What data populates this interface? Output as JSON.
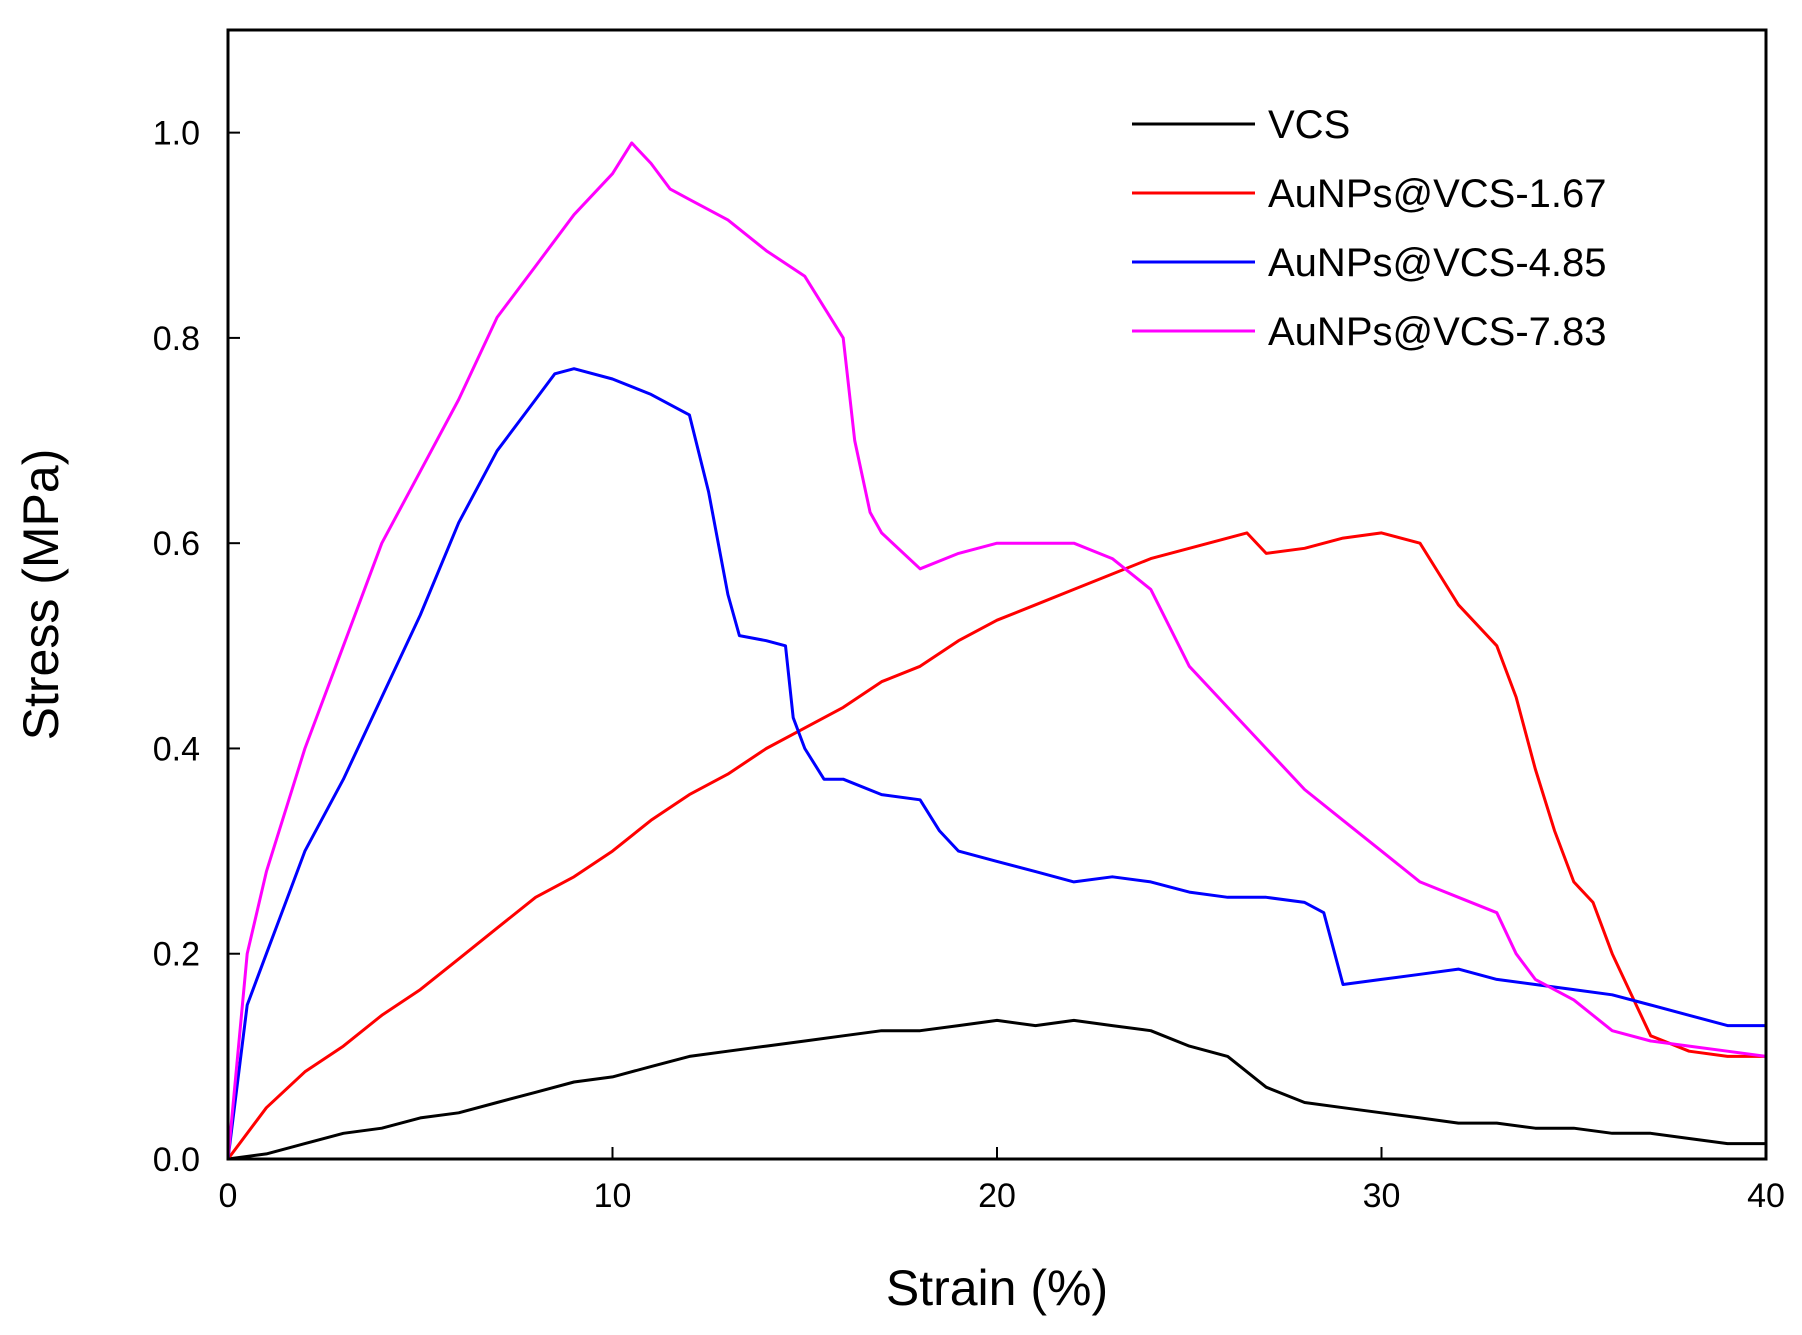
{
  "chart_data": {
    "type": "line",
    "title": "",
    "xlabel": "Strain (%)",
    "ylabel": "Stress (MPa)",
    "xlim": [
      0,
      40
    ],
    "ylim": [
      0,
      1.1
    ],
    "xticks": [
      0,
      10,
      20,
      30,
      40
    ],
    "xtick_labels": [
      "0",
      "10",
      "20",
      "30",
      "40"
    ],
    "yticks": [
      0,
      0.2,
      0.4,
      0.6,
      0.8,
      1.0
    ],
    "ytick_labels": [
      "0.0",
      "0.2",
      "0.4",
      "0.6",
      "0.8",
      "1.0"
    ],
    "grid": false,
    "legend_position": "top-right",
    "series": [
      {
        "name": "VCS",
        "color": "#000000",
        "points": [
          [
            0,
            0
          ],
          [
            1,
            0.005
          ],
          [
            2,
            0.015
          ],
          [
            3,
            0.025
          ],
          [
            4,
            0.03
          ],
          [
            5,
            0.04
          ],
          [
            6,
            0.045
          ],
          [
            7,
            0.055
          ],
          [
            8,
            0.065
          ],
          [
            9,
            0.075
          ],
          [
            10,
            0.08
          ],
          [
            11,
            0.09
          ],
          [
            12,
            0.1
          ],
          [
            13,
            0.105
          ],
          [
            14,
            0.11
          ],
          [
            15,
            0.115
          ],
          [
            16,
            0.12
          ],
          [
            17,
            0.125
          ],
          [
            18,
            0.125
          ],
          [
            19,
            0.13
          ],
          [
            20,
            0.135
          ],
          [
            21,
            0.13
          ],
          [
            22,
            0.135
          ],
          [
            23,
            0.13
          ],
          [
            24,
            0.125
          ],
          [
            25,
            0.11
          ],
          [
            26,
            0.1
          ],
          [
            27,
            0.07
          ],
          [
            28,
            0.055
          ],
          [
            29,
            0.05
          ],
          [
            30,
            0.045
          ],
          [
            31,
            0.04
          ],
          [
            32,
            0.035
          ],
          [
            33,
            0.035
          ],
          [
            34,
            0.03
          ],
          [
            35,
            0.03
          ],
          [
            36,
            0.025
          ],
          [
            37,
            0.025
          ],
          [
            38,
            0.02
          ],
          [
            39,
            0.015
          ],
          [
            40,
            0.015
          ]
        ]
      },
      {
        "name": "AuNPs@VCS-1.67",
        "color": "#ff0000",
        "points": [
          [
            0,
            0
          ],
          [
            1,
            0.05
          ],
          [
            2,
            0.085
          ],
          [
            3,
            0.11
          ],
          [
            4,
            0.14
          ],
          [
            5,
            0.165
          ],
          [
            6,
            0.195
          ],
          [
            7,
            0.225
          ],
          [
            8,
            0.255
          ],
          [
            9,
            0.275
          ],
          [
            10,
            0.3
          ],
          [
            11,
            0.33
          ],
          [
            12,
            0.355
          ],
          [
            13,
            0.375
          ],
          [
            14,
            0.4
          ],
          [
            15,
            0.42
          ],
          [
            16,
            0.44
          ],
          [
            17,
            0.465
          ],
          [
            18,
            0.48
          ],
          [
            19,
            0.505
          ],
          [
            20,
            0.525
          ],
          [
            21,
            0.54
          ],
          [
            22,
            0.555
          ],
          [
            23,
            0.57
          ],
          [
            24,
            0.585
          ],
          [
            25,
            0.595
          ],
          [
            26,
            0.605
          ],
          [
            26.5,
            0.61
          ],
          [
            27,
            0.59
          ],
          [
            28,
            0.595
          ],
          [
            29,
            0.605
          ],
          [
            30,
            0.61
          ],
          [
            31,
            0.6
          ],
          [
            31.5,
            0.57
          ],
          [
            32,
            0.54
          ],
          [
            33,
            0.5
          ],
          [
            33.5,
            0.45
          ],
          [
            34,
            0.38
          ],
          [
            34.5,
            0.32
          ],
          [
            35,
            0.27
          ],
          [
            35.5,
            0.25
          ],
          [
            36,
            0.2
          ],
          [
            36.5,
            0.16
          ],
          [
            37,
            0.12
          ],
          [
            38,
            0.105
          ],
          [
            39,
            0.1
          ],
          [
            40,
            0.1
          ]
        ]
      },
      {
        "name": "AuNPs@VCS-4.85",
        "color": "#0000ff",
        "points": [
          [
            0,
            0
          ],
          [
            0.5,
            0.15
          ],
          [
            1,
            0.2
          ],
          [
            1.5,
            0.25
          ],
          [
            2,
            0.3
          ],
          [
            3,
            0.37
          ],
          [
            4,
            0.45
          ],
          [
            5,
            0.53
          ],
          [
            6,
            0.62
          ],
          [
            7,
            0.69
          ],
          [
            8,
            0.74
          ],
          [
            8.5,
            0.765
          ],
          [
            9,
            0.77
          ],
          [
            10,
            0.76
          ],
          [
            11,
            0.745
          ],
          [
            12,
            0.725
          ],
          [
            12.5,
            0.65
          ],
          [
            13,
            0.55
          ],
          [
            13.3,
            0.51
          ],
          [
            14,
            0.505
          ],
          [
            14.5,
            0.5
          ],
          [
            14.7,
            0.43
          ],
          [
            15,
            0.4
          ],
          [
            15.5,
            0.37
          ],
          [
            16,
            0.37
          ],
          [
            17,
            0.355
          ],
          [
            18,
            0.35
          ],
          [
            18.5,
            0.32
          ],
          [
            19,
            0.3
          ],
          [
            20,
            0.29
          ],
          [
            21,
            0.28
          ],
          [
            22,
            0.27
          ],
          [
            23,
            0.275
          ],
          [
            24,
            0.27
          ],
          [
            25,
            0.26
          ],
          [
            26,
            0.255
          ],
          [
            27,
            0.255
          ],
          [
            28,
            0.25
          ],
          [
            28.5,
            0.24
          ],
          [
            29,
            0.17
          ],
          [
            30,
            0.175
          ],
          [
            31,
            0.18
          ],
          [
            32,
            0.185
          ],
          [
            33,
            0.175
          ],
          [
            34,
            0.17
          ],
          [
            35,
            0.165
          ],
          [
            36,
            0.16
          ],
          [
            37,
            0.15
          ],
          [
            38,
            0.14
          ],
          [
            39,
            0.13
          ],
          [
            40,
            0.13
          ]
        ]
      },
      {
        "name": "AuNPs@VCS-7.83",
        "color": "#ff00ff",
        "points": [
          [
            0,
            0
          ],
          [
            0.5,
            0.2
          ],
          [
            1,
            0.28
          ],
          [
            2,
            0.4
          ],
          [
            3,
            0.5
          ],
          [
            4,
            0.6
          ],
          [
            5,
            0.67
          ],
          [
            6,
            0.74
          ],
          [
            7,
            0.82
          ],
          [
            8,
            0.87
          ],
          [
            9,
            0.92
          ],
          [
            10,
            0.96
          ],
          [
            10.5,
            0.99
          ],
          [
            11,
            0.97
          ],
          [
            11.5,
            0.945
          ],
          [
            12,
            0.935
          ],
          [
            13,
            0.915
          ],
          [
            14,
            0.885
          ],
          [
            15,
            0.86
          ],
          [
            16,
            0.8
          ],
          [
            16.3,
            0.7
          ],
          [
            16.7,
            0.63
          ],
          [
            17,
            0.61
          ],
          [
            18,
            0.575
          ],
          [
            19,
            0.59
          ],
          [
            20,
            0.6
          ],
          [
            21,
            0.6
          ],
          [
            22,
            0.6
          ],
          [
            23,
            0.585
          ],
          [
            24,
            0.555
          ],
          [
            25,
            0.48
          ],
          [
            26,
            0.44
          ],
          [
            27,
            0.4
          ],
          [
            28,
            0.36
          ],
          [
            29,
            0.33
          ],
          [
            30,
            0.3
          ],
          [
            31,
            0.27
          ],
          [
            32,
            0.255
          ],
          [
            33,
            0.24
          ],
          [
            33.5,
            0.2
          ],
          [
            34,
            0.175
          ],
          [
            35,
            0.155
          ],
          [
            36,
            0.125
          ],
          [
            37,
            0.115
          ],
          [
            38,
            0.11
          ],
          [
            39,
            0.105
          ],
          [
            40,
            0.1
          ]
        ]
      }
    ]
  }
}
